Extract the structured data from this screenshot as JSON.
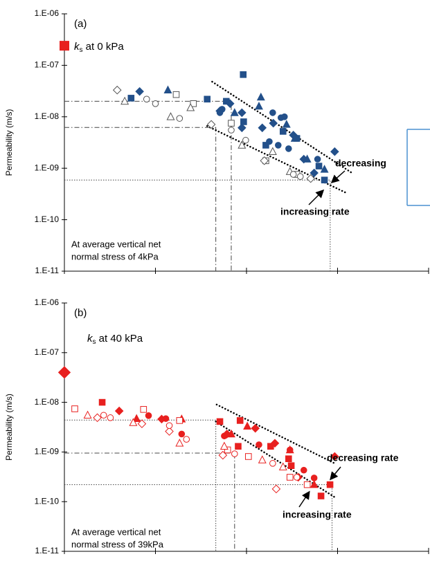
{
  "chart_data": [
    {
      "type": "scatter",
      "panel_label": "(a)",
      "ylabel": "Permeability (m/s)",
      "ylog": true,
      "xlog": true,
      "xlim": [
        0.1,
        1000
      ],
      "xticks": [
        0.1,
        1,
        10,
        100,
        1000
      ],
      "ylim": [
        1e-11,
        1e-06
      ],
      "yticks": [
        {
          "value": 1e-11,
          "label": "1.E-11"
        },
        {
          "value": 1e-10,
          "label": "1.E-10"
        },
        {
          "value": 1e-09,
          "label": "1.E-09"
        },
        {
          "value": 1e-08,
          "label": "1.E-08"
        },
        {
          "value": 1e-07,
          "label": "1.E-07"
        },
        {
          "value": 1e-06,
          "label": "1.E-06"
        }
      ],
      "ks": {
        "symbol": "k",
        "subscript": "s",
        "text": " at 0 kPa",
        "x": 0.1,
        "value": 2.4e-07,
        "marker": "square",
        "color": "#e8201f"
      },
      "annotations": [
        "decreasing",
        "increasing rate"
      ],
      "note": [
        "At average vertical net",
        "normal stress of 4kPa"
      ],
      "series": [
        {
          "marker": "square",
          "filled": true,
          "color": "#23508a",
          "x": [
            0.54,
            3.7,
            6.0,
            9.2,
            9.3,
            16.3,
            25.2,
            35.7,
            62.4,
            71.8
          ],
          "values": [
            2.3e-08,
            2.2e-08,
            2e-08,
            6.6e-08,
            8e-09,
            2.8e-09,
            5.2e-09,
            3.8e-09,
            1.1e-09,
            5.9e-10
          ]
        },
        {
          "marker": "diamond",
          "filled": true,
          "color": "#23508a",
          "x": [
            0.67,
            5.1,
            6.6,
            8.9,
            8.9,
            14.9,
            19.7,
            32.7,
            42.6,
            55.3,
            93
          ],
          "values": [
            3.1e-08,
            1.3e-08,
            1.8e-08,
            1.2e-08,
            6.1e-09,
            6.1e-09,
            7.5e-09,
            4.4e-09,
            1.5e-09,
            8.1e-10,
            2.1e-09
          ]
        },
        {
          "marker": "triangle",
          "filled": true,
          "color": "#23508a",
          "x": [
            1.37,
            7.4,
            13.7,
            14.4,
            27.5,
            33.9,
            46.4,
            71.8
          ],
          "values": [
            3.3e-08,
            1.2e-08,
            1.6e-08,
            2.4e-08,
            7.1e-09,
            3.8e-09,
            1.5e-09,
            9.5e-10
          ]
        },
        {
          "marker": "circle",
          "filled": true,
          "color": "#23508a",
          "x": [
            5.1,
            5.4,
            19.4,
            23.9,
            26.1,
            17.8,
            22.3,
            29,
            60.3
          ],
          "values": [
            1.2e-08,
            1.4e-08,
            1.2e-08,
            9.6e-09,
            1e-08,
            3.3e-09,
            2.8e-09,
            2.4e-09,
            1.5e-09
          ]
        },
        {
          "marker": "square",
          "filled": false,
          "color": "#555555",
          "x": [
            1.69,
            2.61,
            6.8,
            16.3,
            35.7
          ],
          "values": [
            2.7e-08,
            1.8e-08,
            7.5e-09,
            1.4e-09,
            7.6e-10
          ]
        },
        {
          "marker": "diamond",
          "filled": false,
          "color": "#555555",
          "x": [
            0.38,
            4.1,
            15.7,
            50.7
          ],
          "values": [
            3.3e-08,
            7.1e-09,
            1.4e-09,
            6.3e-10
          ]
        },
        {
          "marker": "triangle",
          "filled": false,
          "color": "#555555",
          "x": [
            0.46,
            1.47,
            2.43,
            8.9,
            19.4,
            30
          ],
          "values": [
            2e-08,
            1e-08,
            1.5e-08,
            2.8e-09,
            2.1e-09,
            8.6e-10
          ]
        },
        {
          "marker": "circle",
          "filled": false,
          "color": "#555555",
          "x": [
            0.8,
            1.0,
            1.84,
            6.8,
            9.8,
            32.7,
            39
          ],
          "values": [
            2.2e-08,
            1.8e-08,
            9.3e-09,
            5.5e-09,
            3.5e-09,
            7.6e-10,
            6.9e-10
          ]
        }
      ],
      "trend_lines": [
        {
          "x": [
            4.2,
            144
          ],
          "y": [
            4.8e-08,
            8.1e-10
          ]
        },
        {
          "x": [
            3.7,
            121
          ],
          "y": [
            6.6e-09,
            3.4e-10
          ]
        }
      ],
      "guides": [
        {
          "x": 6.8,
          "y": 2e-08,
          "style": "dash-dot"
        },
        {
          "x": 4.6,
          "y": 6.2e-09,
          "style": "dash-dot"
        },
        {
          "x": 83,
          "y": 5.9e-10,
          "style": "dotted"
        }
      ]
    },
    {
      "type": "scatter",
      "panel_label": "(b)",
      "ylabel": "Permeability (m/s)",
      "ylog": true,
      "xlog": true,
      "xlim": [
        0.1,
        1000
      ],
      "xticks": [
        0.1,
        1,
        10,
        100,
        1000
      ],
      "ylim": [
        1e-11,
        1e-06
      ],
      "yticks": [
        {
          "value": 1e-11,
          "label": "1.E-11"
        },
        {
          "value": 1e-10,
          "label": "1.E-10"
        },
        {
          "value": 1e-09,
          "label": "1.E-09"
        },
        {
          "value": 1e-08,
          "label": "1.E-08"
        },
        {
          "value": 1e-07,
          "label": "1.E-07"
        },
        {
          "value": 1e-06,
          "label": "1.E-06"
        }
      ],
      "ks": {
        "symbol": "k",
        "subscript": "s",
        "text": " at 40 kPa",
        "x": 0.1,
        "value": 4e-08,
        "marker": "diamond",
        "color": "#e8201f"
      },
      "annotations": [
        "decreasing rate",
        "increasing rate"
      ],
      "note": [
        "At average vertical net",
        "normal stress of 39kPa"
      ],
      "series": [
        {
          "marker": "square",
          "filled": true,
          "color": "#e8201f",
          "x": [
            0.26,
            5.1,
            8.5,
            8.1,
            18.4,
            29,
            31,
            65.8,
            82.6
          ],
          "values": [
            1e-08,
            4.1e-09,
            4.3e-09,
            1.3e-09,
            1.3e-09,
            7.3e-10,
            5.3e-10,
            1.3e-10,
            2.2e-10
          ]
        },
        {
          "marker": "diamond",
          "filled": true,
          "color": "#e8201f",
          "x": [
            0.4,
            1.17,
            6.1,
            12.5,
            20.5,
            37,
            93
          ],
          "values": [
            6.7e-09,
            4.6e-09,
            2.3e-09,
            3e-09,
            1.5e-09,
            3.1e-10,
            8.1e-10
          ]
        },
        {
          "marker": "triangle",
          "filled": true,
          "color": "#e8201f",
          "x": [
            0.62,
            1.94,
            6.8,
            10.2,
            30,
            55.3
          ],
          "values": [
            4.7e-09,
            4.6e-09,
            2.3e-09,
            3.3e-09,
            1.1e-09,
            2.2e-10
          ]
        },
        {
          "marker": "circle",
          "filled": true,
          "color": "#e8201f",
          "x": [
            0.84,
            1.3,
            1.94,
            5.7,
            13.7,
            30,
            42.6,
            55.3
          ],
          "values": [
            5.4e-09,
            4.7e-09,
            2.3e-09,
            2.1e-09,
            1.4e-09,
            1.1e-09,
            4.3e-10,
            3e-10
          ]
        },
        {
          "marker": "square",
          "filled": false,
          "color": "#e8201f",
          "x": [
            0.13,
            0.74,
            1.84,
            6.2,
            10.5,
            30,
            46.4
          ],
          "values": [
            7.4e-09,
            7.2e-09,
            4.3e-09,
            1.1e-09,
            8.1e-10,
            3.1e-10,
            2.2e-10
          ]
        },
        {
          "marker": "diamond",
          "filled": false,
          "color": "#e8201f",
          "x": [
            0.23,
            0.71,
            1.42,
            5.5,
            21.2
          ],
          "values": [
            4.9e-09,
            3.7e-09,
            2.6e-09,
            8.6e-10,
            1.8e-10
          ]
        },
        {
          "marker": "triangle",
          "filled": false,
          "color": "#e8201f",
          "x": [
            0.18,
            0.57,
            1.84,
            5.7,
            14.9,
            25.2
          ],
          "values": [
            5.5e-09,
            3.9e-09,
            1.5e-09,
            1.3e-09,
            6.9e-10,
            5e-10
          ]
        },
        {
          "marker": "circle",
          "filled": false,
          "color": "#e8201f",
          "x": [
            0.27,
            0.32,
            1.42,
            2.19,
            7.4,
            19.4,
            35.7
          ],
          "values": [
            5.5e-09,
            4.9e-09,
            3.4e-09,
            1.8e-09,
            9.2e-10,
            5.9e-10,
            3.1e-10
          ]
        }
      ],
      "trend_lines": [
        {
          "x": [
            4.7,
            93
          ],
          "y": [
            9e-09,
            5.9e-10
          ]
        },
        {
          "x": [
            4.6,
            95
          ],
          "y": [
            4.1e-09,
            1.2e-10
          ]
        }
      ],
      "guides": [
        {
          "x": 4.6,
          "y": 4.4e-09,
          "style": "dotted"
        },
        {
          "x": 7.4,
          "y": 9.5e-10,
          "style": "dash-dot"
        },
        {
          "x": 87,
          "y": 2.2e-10,
          "style": "dotted"
        }
      ]
    }
  ]
}
